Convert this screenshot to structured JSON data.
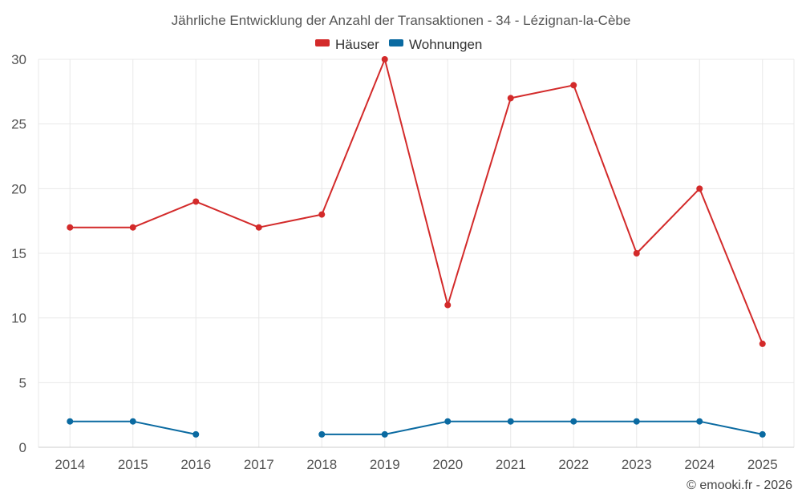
{
  "chart_data": {
    "type": "line",
    "title": "Jährliche Entwicklung der Anzahl der Transaktionen - 34 - Lézignan-la-Cèbe",
    "categories": [
      "2014",
      "2015",
      "2016",
      "2017",
      "2018",
      "2019",
      "2020",
      "2021",
      "2022",
      "2023",
      "2024",
      "2025"
    ],
    "series": [
      {
        "name": "Häuser",
        "color": "#d32a2a",
        "values": [
          17,
          17,
          19,
          17,
          18,
          30,
          11,
          27,
          28,
          15,
          20,
          8
        ]
      },
      {
        "name": "Wohnungen",
        "color": "#0a6aa1",
        "values": [
          2,
          2,
          1,
          null,
          1,
          1,
          2,
          2,
          2,
          2,
          2,
          1
        ]
      }
    ],
    "ylim": [
      0,
      30
    ],
    "yticks": [
      "0",
      "5",
      "10",
      "15",
      "20",
      "25",
      "30"
    ],
    "grid": true,
    "legend_position": "top-center"
  },
  "credit": "© emooki.fr - 2026"
}
